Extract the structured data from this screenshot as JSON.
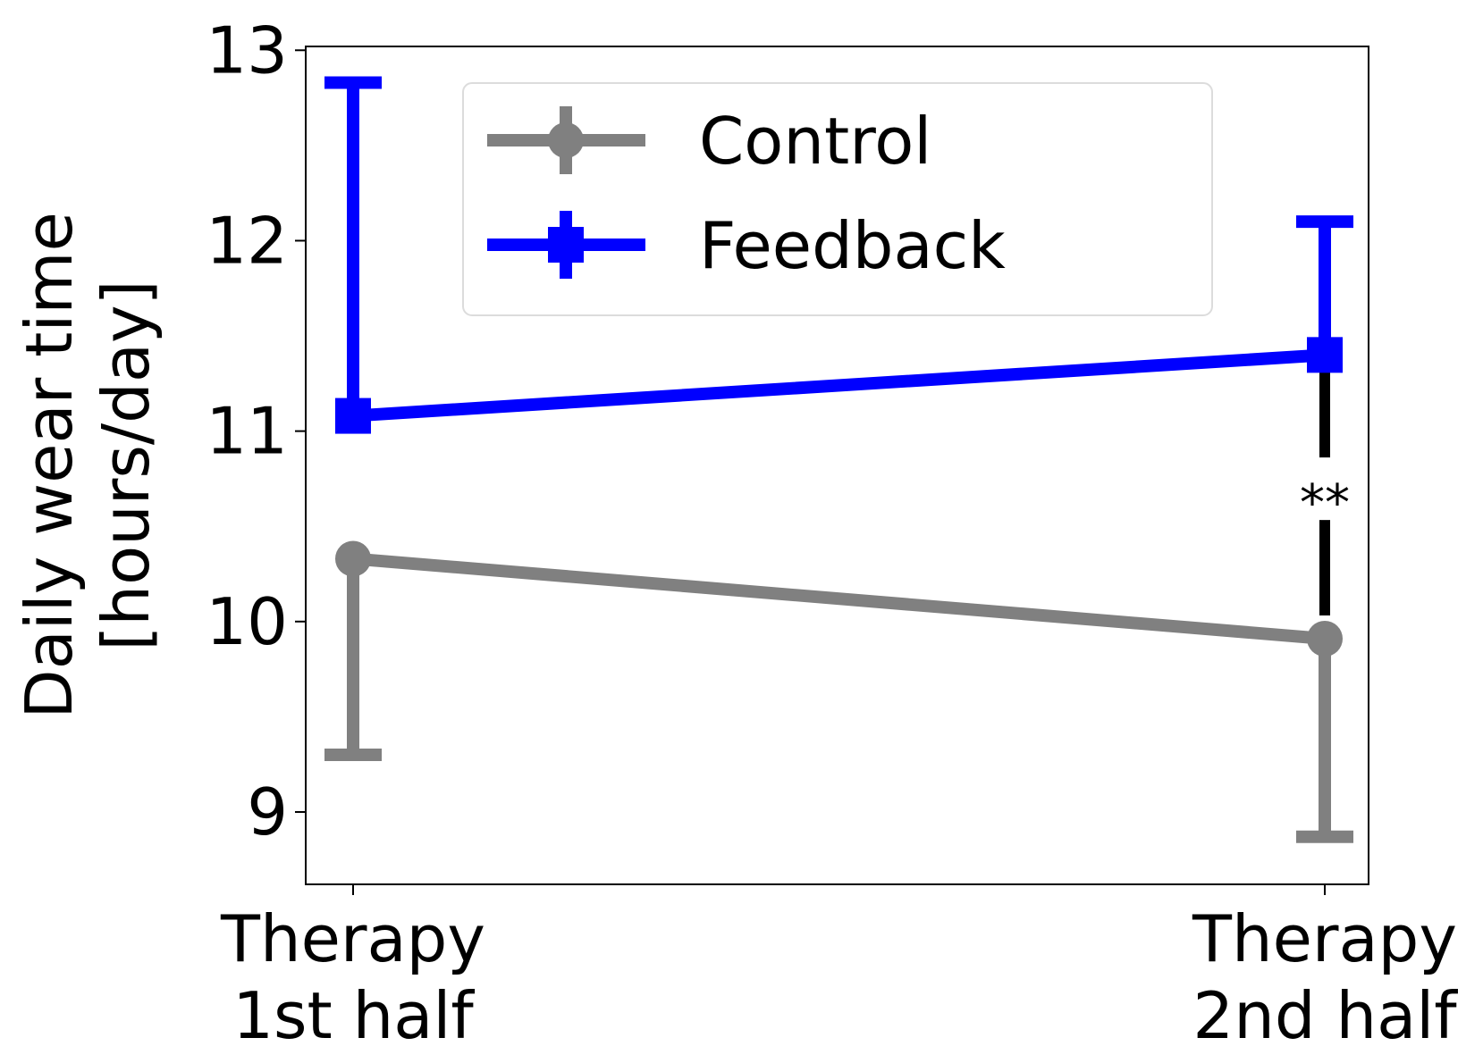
{
  "chart_data": {
    "type": "line",
    "categories": [
      [
        "Therapy",
        "1st half"
      ],
      [
        "Therapy",
        "2nd half"
      ]
    ],
    "ylabel_lines": [
      "Daily wear time",
      "[hours/day]"
    ],
    "ylim": [
      8.62,
      13.02
    ],
    "yticks": [
      9,
      10,
      11,
      12,
      13
    ],
    "grid": false,
    "legend_position": "top-center",
    "series": [
      {
        "name": "Control",
        "color": "#808080",
        "marker": "circle",
        "values": [
          10.33,
          9.91
        ],
        "error_lower": [
          9.3,
          8.87
        ],
        "error_upper": [
          10.33,
          9.91
        ]
      },
      {
        "name": "Feedback",
        "color": "#0000ff",
        "marker": "square",
        "values": [
          11.08,
          11.4
        ],
        "error_lower": [
          11.08,
          11.4
        ],
        "error_upper": [
          12.83,
          12.1
        ]
      }
    ],
    "annotations": [
      {
        "text": "**",
        "category_index": 1,
        "from": 9.91,
        "to": 11.4
      }
    ]
  }
}
